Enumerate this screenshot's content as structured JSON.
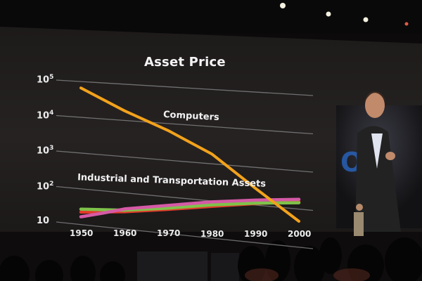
{
  "chart_data": {
    "type": "line",
    "title": "Asset Price",
    "xlabel": "",
    "ylabel": "",
    "yscale": "log",
    "xlim": [
      1950,
      2000
    ],
    "ylim": [
      10,
      100000
    ],
    "grid": true,
    "x_ticks": [
      {
        "value": 1950,
        "label": "1950"
      },
      {
        "value": 1960,
        "label": "1960"
      },
      {
        "value": 1970,
        "label": "1970"
      },
      {
        "value": 1980,
        "label": "1980"
      },
      {
        "value": 1990,
        "label": "1990"
      },
      {
        "value": 2000,
        "label": "2000"
      }
    ],
    "y_ticks": [
      {
        "value": 10,
        "base": "10",
        "exp": ""
      },
      {
        "value": 100,
        "base": "10",
        "exp": "2"
      },
      {
        "value": 1000,
        "base": "10",
        "exp": "3"
      },
      {
        "value": 10000,
        "base": "10",
        "exp": "4"
      },
      {
        "value": 100000,
        "base": "10",
        "exp": "5"
      }
    ],
    "annotations": {
      "computers": "Computers",
      "industrial": "Industrial and Transportation Assets"
    },
    "series": [
      {
        "name": "Computers",
        "color": "#f2a21c",
        "points": [
          [
            1950,
            60000
          ],
          [
            1960,
            14000
          ],
          [
            1970,
            4000
          ],
          [
            1980,
            900
          ],
          [
            1990,
            100
          ],
          [
            2000,
            12
          ]
        ]
      },
      {
        "color": "#e33a2a",
        "points": [
          [
            1950,
            19
          ],
          [
            1960,
            20
          ],
          [
            1970,
            24
          ],
          [
            1980,
            30
          ],
          [
            1990,
            37
          ],
          [
            2000,
            43
          ]
        ]
      },
      {
        "color": "#7fc24a",
        "points": [
          [
            1950,
            23
          ],
          [
            1960,
            22
          ],
          [
            1970,
            26
          ],
          [
            1980,
            33
          ],
          [
            1990,
            38
          ],
          [
            2000,
            40
          ]
        ]
      },
      {
        "color": "#d55aa6",
        "points": [
          [
            1950,
            14
          ],
          [
            1955,
            18
          ],
          [
            1960,
            24
          ],
          [
            1970,
            31
          ],
          [
            1980,
            40
          ],
          [
            1990,
            46
          ],
          [
            2000,
            50
          ]
        ]
      }
    ]
  }
}
